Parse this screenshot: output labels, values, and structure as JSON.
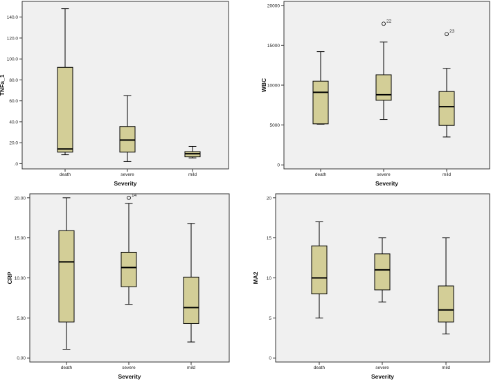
{
  "chart_data": [
    {
      "type": "boxplot",
      "xlabel": "Severity",
      "ylabel": "TNFa_1",
      "ylim": [
        -5,
        155
      ],
      "yticks": [
        0,
        20,
        40,
        60,
        80,
        100,
        120,
        140
      ],
      "ytick_labels": [
        ".0",
        "20.0",
        "40.0",
        "60.0",
        "80.0",
        "100.0",
        "120.0",
        "140.0"
      ],
      "categories": [
        "death",
        "severe",
        "mild"
      ],
      "boxes": [
        {
          "category": "death",
          "whisker_low": 8.5,
          "q1": 11.0,
          "median": 14.0,
          "q3": 92.0,
          "whisker_high": 148.0
        },
        {
          "category": "severe",
          "whisker_low": 2.0,
          "q1": 11.0,
          "median": 22.5,
          "q3": 35.5,
          "whisker_high": 65.0
        },
        {
          "category": "mild",
          "whisker_low": 5.5,
          "q1": 6.5,
          "median": 9.5,
          "q3": 11.5,
          "whisker_high": 16.5
        }
      ],
      "outliers": []
    },
    {
      "type": "boxplot",
      "xlabel": "Severity",
      "ylabel": "WBC",
      "ylim": [
        -500,
        20500
      ],
      "yticks": [
        0,
        5000,
        10000,
        15000,
        20000
      ],
      "ytick_labels": [
        "0",
        "5000",
        "10000",
        "15000",
        "20000"
      ],
      "categories": [
        "death",
        "severe",
        "mild"
      ],
      "boxes": [
        {
          "category": "death",
          "whisker_low": 5100,
          "q1": 5150,
          "median": 9100,
          "q3": 10500,
          "whisker_high": 14200
        },
        {
          "category": "severe",
          "whisker_low": 5700,
          "q1": 8100,
          "median": 8800,
          "q3": 11300,
          "whisker_high": 15400
        },
        {
          "category": "mild",
          "whisker_low": 3500,
          "q1": 4950,
          "median": 7300,
          "q3": 9200,
          "whisker_high": 12100
        }
      ],
      "outliers": [
        {
          "category": "severe",
          "value": 17700,
          "label": "22"
        },
        {
          "category": "mild",
          "value": 16400,
          "label": "23"
        }
      ]
    },
    {
      "type": "boxplot",
      "xlabel": "Severity",
      "ylabel": "CRP",
      "ylim": [
        -0.5,
        20.5
      ],
      "yticks": [
        0,
        5,
        10,
        15,
        20
      ],
      "ytick_labels": [
        "0.00",
        "5.00",
        "10.00",
        "15.00",
        "20.00"
      ],
      "categories": [
        "death",
        "severe",
        "mild"
      ],
      "boxes": [
        {
          "category": "death",
          "whisker_low": 1.1,
          "q1": 4.5,
          "median": 12.0,
          "q3": 15.9,
          "whisker_high": 20.0
        },
        {
          "category": "severe",
          "whisker_low": 6.7,
          "q1": 8.9,
          "median": 11.3,
          "q3": 13.2,
          "whisker_high": 19.3
        },
        {
          "category": "mild",
          "whisker_low": 2.0,
          "q1": 4.3,
          "median": 6.3,
          "q3": 10.1,
          "whisker_high": 16.8
        }
      ],
      "outliers": [
        {
          "category": "severe",
          "value": 20.0,
          "label": "14"
        }
      ]
    },
    {
      "type": "boxplot",
      "xlabel": "Severity",
      "ylabel": "MA2",
      "ylim": [
        -0.5,
        20.5
      ],
      "yticks": [
        0,
        5,
        10,
        15,
        20
      ],
      "ytick_labels": [
        "0",
        "5",
        "10",
        "15",
        "20"
      ],
      "categories": [
        "death",
        "severe",
        "mild"
      ],
      "boxes": [
        {
          "category": "death",
          "whisker_low": 5,
          "q1": 8,
          "median": 10,
          "q3": 14,
          "whisker_high": 17
        },
        {
          "category": "severe",
          "whisker_low": 7,
          "q1": 8.5,
          "median": 11,
          "q3": 13,
          "whisker_high": 15
        },
        {
          "category": "mild",
          "whisker_low": 3,
          "q1": 4.5,
          "median": 6,
          "q3": 9,
          "whisker_high": 15
        }
      ],
      "outliers": []
    }
  ],
  "colors": {
    "plot_background": "#f0f0f0",
    "box_fill": "#d3ce97",
    "frame": "#333333",
    "page_background": "#ffffff"
  }
}
